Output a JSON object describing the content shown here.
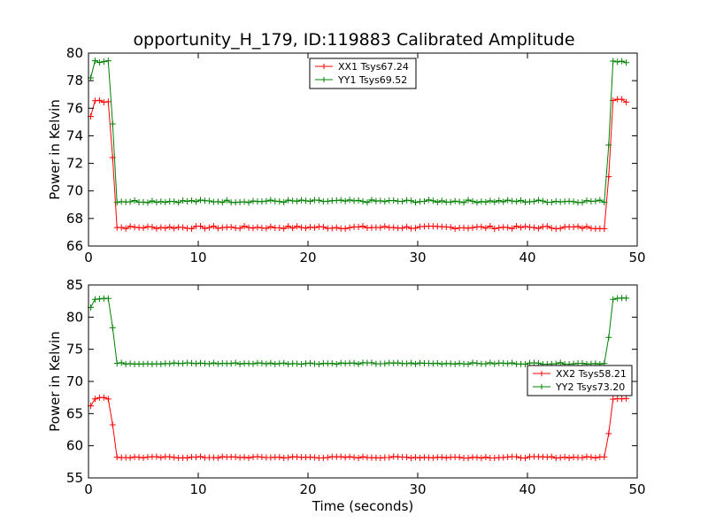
{
  "title": "opportunity_H_179, ID:119883 Calibrated Amplitude",
  "chart_data": [
    {
      "type": "line",
      "ylabel": "Power in Kelvin",
      "xlabel": "",
      "xlim": [
        0,
        50
      ],
      "ylim": [
        66,
        80
      ],
      "xticks": [
        "0",
        "10",
        "20",
        "30",
        "40",
        "50"
      ],
      "yticks": [
        "66",
        "68",
        "70",
        "72",
        "74",
        "76",
        "78",
        "80"
      ],
      "legend_position": "top-center",
      "series": [
        {
          "name": "XX1 Tsys67.24",
          "color": "#ff0000",
          "low": 67.35,
          "high": 76.55,
          "step_start": 75.4,
          "jitter": 0.1
        },
        {
          "name": "YY1 Tsys69.52",
          "color": "#008000",
          "low": 69.25,
          "high": 79.45,
          "step_start": 78.2,
          "jitter": 0.1
        }
      ]
    },
    {
      "type": "line",
      "ylabel": "Power in Kelvin",
      "xlabel": "Time (seconds)",
      "xlim": [
        0,
        50
      ],
      "ylim": [
        55,
        85
      ],
      "xticks": [
        "0",
        "10",
        "20",
        "30",
        "40",
        "50"
      ],
      "yticks": [
        "55",
        "60",
        "65",
        "70",
        "75",
        "80",
        "85"
      ],
      "legend_position": "center-right",
      "series": [
        {
          "name": "XX2 Tsys58.21",
          "color": "#ff0000",
          "low": 58.2,
          "high": 67.4,
          "step_start": 66.2,
          "jitter": 0.12
        },
        {
          "name": "YY2 Tsys73.20",
          "color": "#008000",
          "low": 72.8,
          "high": 82.9,
          "step_start": 81.5,
          "jitter": 0.12
        }
      ]
    }
  ]
}
